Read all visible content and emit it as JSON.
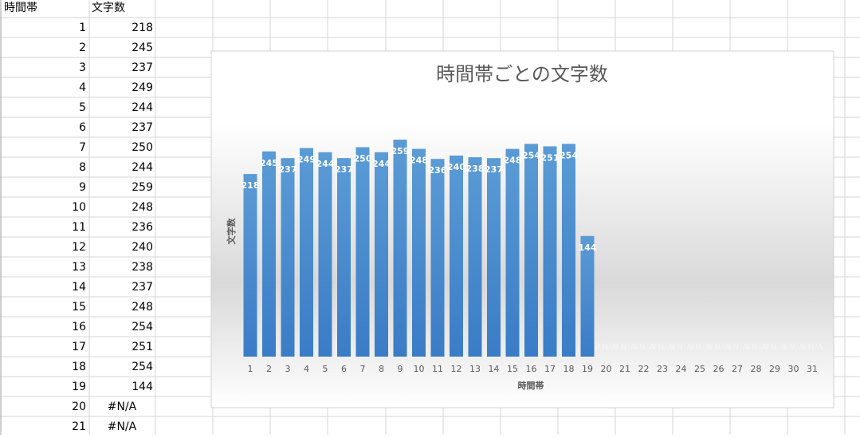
{
  "sheet": {
    "headers": [
      "時間帯",
      "文字数"
    ],
    "rows": [
      [
        1,
        218
      ],
      [
        2,
        245
      ],
      [
        3,
        237
      ],
      [
        4,
        249
      ],
      [
        5,
        244
      ],
      [
        6,
        237
      ],
      [
        7,
        250
      ],
      [
        8,
        244
      ],
      [
        9,
        259
      ],
      [
        10,
        248
      ],
      [
        11,
        236
      ],
      [
        12,
        240
      ],
      [
        13,
        238
      ],
      [
        14,
        237
      ],
      [
        15,
        248
      ],
      [
        16,
        254
      ],
      [
        17,
        251
      ],
      [
        18,
        254
      ],
      [
        19,
        144
      ],
      [
        20,
        "#N/A"
      ],
      [
        21,
        "#N/A"
      ]
    ]
  },
  "chart_data": {
    "type": "bar",
    "title": "時間帯ごとの文字数",
    "x_label": "時間帯",
    "y_label": "文字数",
    "categories": [
      1,
      2,
      3,
      4,
      5,
      6,
      7,
      8,
      9,
      10,
      11,
      12,
      13,
      14,
      15,
      16,
      17,
      18,
      19,
      20,
      21,
      22,
      23,
      24,
      25,
      26,
      27,
      28,
      29,
      30,
      31
    ],
    "values": [
      218,
      245,
      237,
      249,
      244,
      237,
      250,
      244,
      259,
      248,
      236,
      240,
      238,
      237,
      248,
      254,
      251,
      254,
      144,
      null,
      null,
      null,
      null,
      null,
      null,
      null,
      null,
      null,
      null,
      null,
      null
    ],
    "value_labels": [
      "218",
      "245",
      "237",
      "249",
      "244",
      "237",
      "250",
      "244",
      "259",
      "248",
      "236",
      "240",
      "238",
      "237",
      "248",
      "254",
      "251",
      "254",
      "144",
      "#N/A",
      "#N/A",
      "#N/A",
      "#N/A",
      "#N/A",
      "#N/A",
      "#N/A",
      "#N/A",
      "#N/A",
      "#N/A",
      "#N/A",
      "#N/A"
    ],
    "color": "#4a8fd2",
    "ylim": [
      0,
      300
    ]
  }
}
